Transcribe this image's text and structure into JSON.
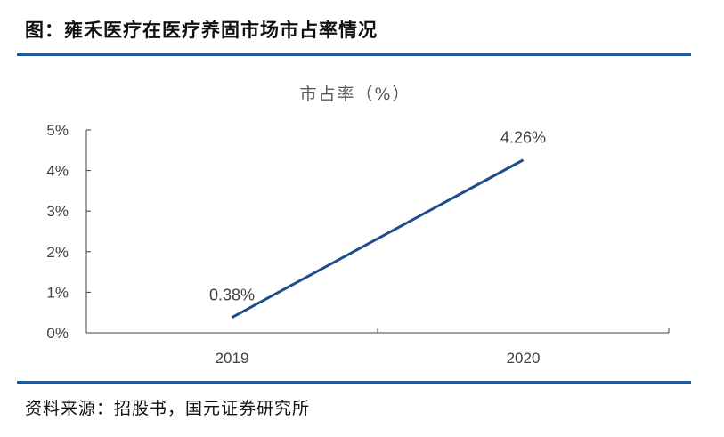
{
  "figure": {
    "title": "图：雍禾医疗在医疗养固市场市占率情况",
    "source": "资料来源：招股书，国元证券研究所"
  },
  "colors": {
    "accent": "#1f5a9e",
    "line": "#1f4e8c",
    "axis": "#404040",
    "text": "#404040",
    "title_text": "#595959"
  },
  "chart_data": {
    "type": "line",
    "title": "市占率（%）",
    "xlabel": "",
    "ylabel": "",
    "categories": [
      "2019",
      "2020"
    ],
    "series": [
      {
        "values": [
          0.38,
          4.26
        ],
        "data_labels": [
          "0.38%",
          "4.26%"
        ]
      }
    ],
    "ylim": [
      0,
      5
    ],
    "yticks": [
      0,
      1,
      2,
      3,
      4,
      5
    ],
    "ytick_labels": [
      "0%",
      "1%",
      "2%",
      "3%",
      "4%",
      "5%"
    ],
    "grid": false,
    "legend": "none"
  }
}
